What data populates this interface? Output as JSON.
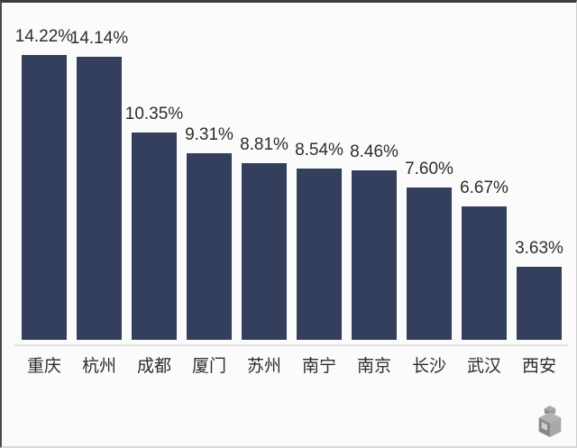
{
  "chart_data": {
    "type": "bar",
    "categories": [
      "重庆",
      "杭州",
      "成都",
      "厦门",
      "苏州",
      "南宁",
      "南京",
      "长沙",
      "武汉",
      "西安"
    ],
    "values": [
      14.22,
      14.14,
      10.35,
      9.31,
      8.81,
      8.54,
      8.46,
      7.6,
      6.67,
      3.63
    ],
    "value_labels": [
      "14.22%",
      "14.14%",
      "10.35%",
      "9.31%",
      "8.81%",
      "8.54%",
      "8.46%",
      "7.60%",
      "6.67%",
      "3.63%"
    ],
    "title": "",
    "xlabel": "",
    "ylabel": "",
    "ylim": [
      0,
      15.5
    ],
    "grid": false,
    "legend": null,
    "bar_color": "#343F5E",
    "label_color": "#2d2d2d",
    "background_color": "#fbfbfb",
    "axis_line_color": "#e3e3e3"
  },
  "watermark": {
    "icon": "cube-logo-icon",
    "color_top": "#a6a6a6",
    "color_left": "#757575",
    "color_right": "#9a9a9a",
    "color_inset": "#c9c9c9"
  }
}
